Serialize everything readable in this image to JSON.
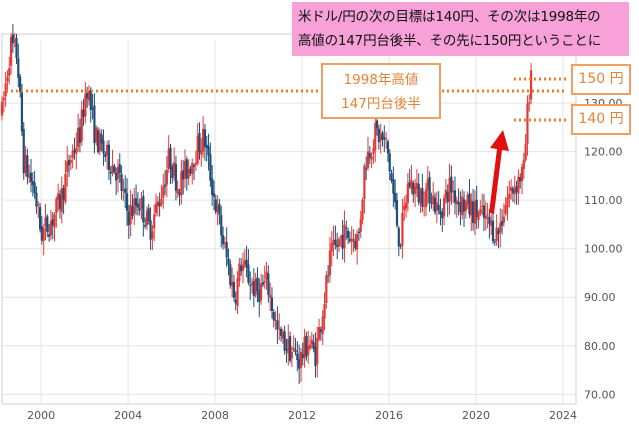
{
  "headline": {
    "line1": "米ドル/円の次の目標は140円、その次は1998年の",
    "line2": "高値の147円台後半、その先に150円ということに"
  },
  "annotations": {
    "note_1998_line1": "1998年高値",
    "note_1998_line2": "147円台後半",
    "badge_150": "150 円",
    "badge_140": "140 円"
  },
  "colors": {
    "up_candle": "#e53935",
    "down_candle": "#1f4e79",
    "grid": "#e3e3e3",
    "axis_text": "#555555",
    "dotted_line": "#ee7d2a",
    "arrow": "#e01010",
    "callout_border": "#f0a060",
    "headline_bg": "#f7a1d8"
  },
  "chart_data": {
    "type": "candlestick",
    "title": "",
    "xlabel": "",
    "ylabel": "",
    "ylim": [
      68,
      143
    ],
    "xlim": [
      1998.2,
      2024.6
    ],
    "x_ticks": [
      "2000",
      "2004",
      "2008",
      "2012",
      "2016",
      "2020",
      "2024"
    ],
    "y_ticks": [
      "70.00",
      "80.00",
      "90.00",
      "100.00",
      "110.00",
      "120.00",
      "130.00"
    ],
    "grid": true,
    "path_points": [
      [
        1998.2,
        128
      ],
      [
        1998.6,
        142
      ],
      [
        1998.9,
        140
      ],
      [
        1999.2,
        118
      ],
      [
        1999.7,
        112
      ],
      [
        2000.0,
        103
      ],
      [
        2000.5,
        106
      ],
      [
        2000.9,
        110
      ],
      [
        2001.3,
        118
      ],
      [
        2001.8,
        124
      ],
      [
        2002.1,
        134
      ],
      [
        2002.5,
        123
      ],
      [
        2003.0,
        119
      ],
      [
        2003.5,
        116
      ],
      [
        2004.0,
        107
      ],
      [
        2004.5,
        110
      ],
      [
        2005.0,
        104
      ],
      [
        2005.5,
        111
      ],
      [
        2005.9,
        119
      ],
      [
        2006.3,
        113
      ],
      [
        2006.8,
        117
      ],
      [
        2007.2,
        121
      ],
      [
        2007.5,
        123
      ],
      [
        2007.9,
        112
      ],
      [
        2008.3,
        103
      ],
      [
        2008.9,
        90
      ],
      [
        2009.2,
        97
      ],
      [
        2009.9,
        91
      ],
      [
        2010.4,
        93
      ],
      [
        2010.9,
        82
      ],
      [
        2011.5,
        79
      ],
      [
        2011.9,
        77
      ],
      [
        2012.3,
        81
      ],
      [
        2012.6,
        78
      ],
      [
        2012.9,
        86
      ],
      [
        2013.3,
        98
      ],
      [
        2013.9,
        103
      ],
      [
        2014.6,
        102
      ],
      [
        2014.9,
        118
      ],
      [
        2015.4,
        124
      ],
      [
        2015.9,
        121
      ],
      [
        2016.5,
        101
      ],
      [
        2016.9,
        114
      ],
      [
        2017.4,
        111
      ],
      [
        2017.9,
        112
      ],
      [
        2018.3,
        107
      ],
      [
        2018.8,
        113
      ],
      [
        2019.2,
        110
      ],
      [
        2019.8,
        108
      ],
      [
        2020.2,
        107
      ],
      [
        2020.8,
        104
      ],
      [
        2021.0,
        103
      ],
      [
        2021.4,
        110
      ],
      [
        2021.9,
        114
      ],
      [
        2022.2,
        116
      ],
      [
        2022.4,
        130
      ],
      [
        2022.55,
        138
      ]
    ],
    "reference_lines": [
      {
        "label": "1998年高値 147円台後半",
        "value": 147.6
      },
      {
        "label": "150 円",
        "value": 150
      },
      {
        "label": "140 円",
        "value": 140
      }
    ]
  }
}
